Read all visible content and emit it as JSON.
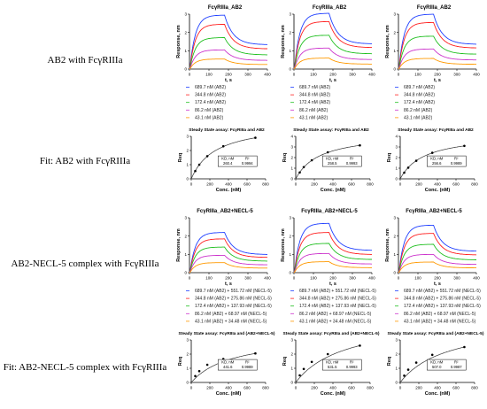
{
  "row_labels": [
    "AB2 with FcγRIIIa",
    "Fit: AB2 with FcγRIIIa",
    "AB2-NECL-5 complex with FcγRIIIa",
    "Fit: AB2-NECL-5 complex with FcγRIIIa"
  ],
  "colors": {
    "series": [
      "#1f3fff",
      "#ff1f1f",
      "#1fbf1f",
      "#cc33cc",
      "#ff9900"
    ],
    "fit_curve": "#333333",
    "axis": "#000000",
    "legend_text": "#222222"
  },
  "chart_data": [
    {
      "type": "line",
      "panel": "sensorgram",
      "row": 0,
      "col": 0,
      "title": "FcγRIIIa_AB2",
      "xlabel": "t, s",
      "ylabel": "Response, nm",
      "xlim": [
        0,
        400
      ],
      "ylim": [
        0,
        3
      ],
      "xticks": [
        "0",
        "100",
        "200",
        "300",
        "400"
      ],
      "yticks": [
        "0",
        "1",
        "2",
        "3"
      ],
      "association_end": 180,
      "series": [
        {
          "name": "689.7 nM (AB2)",
          "plateau": 2.95
        },
        {
          "name": "344.8 nM (AB2)",
          "plateau": 2.45
        },
        {
          "name": "172.4 nM (AB2)",
          "plateau": 1.72
        },
        {
          "name": "86.2 nM (AB2)",
          "plateau": 1.05
        },
        {
          "name": "43.1 nM (AB2)",
          "plateau": 0.55
        }
      ]
    },
    {
      "type": "line",
      "panel": "sensorgram",
      "row": 0,
      "col": 1,
      "title": "FcγRIIIa_AB2",
      "xlabel": "t, s",
      "ylabel": "Response, nm",
      "xlim": [
        0,
        400
      ],
      "ylim": [
        0,
        3
      ],
      "xticks": [
        "0",
        "100",
        "200",
        "300",
        "400"
      ],
      "yticks": [
        "0",
        "1",
        "2",
        "3"
      ],
      "association_end": 180,
      "series": [
        {
          "name": "689.7 nM (AB2)",
          "plateau": 3.05
        },
        {
          "name": "344.8 nM (AB2)",
          "plateau": 2.6
        },
        {
          "name": "172.4 nM (AB2)",
          "plateau": 1.85
        },
        {
          "name": "86.2 nM (AB2)",
          "plateau": 1.15
        },
        {
          "name": "43.1 nM (AB2)",
          "plateau": 0.6
        }
      ]
    },
    {
      "type": "line",
      "panel": "sensorgram",
      "row": 0,
      "col": 2,
      "title": "FcγRIIIa_AB2",
      "xlabel": "t, s",
      "ylabel": "Response, nm",
      "xlim": [
        0,
        400
      ],
      "ylim": [
        0,
        3
      ],
      "xticks": [
        "0",
        "100",
        "200",
        "300",
        "400"
      ],
      "yticks": [
        "0",
        "1",
        "2",
        "3"
      ],
      "association_end": 180,
      "series": [
        {
          "name": "689.7 nM (AB2)",
          "plateau": 3.0
        },
        {
          "name": "344.8 nM (AB2)",
          "plateau": 2.55
        },
        {
          "name": "172.4 nM (AB2)",
          "plateau": 1.8
        },
        {
          "name": "86.2 nM (AB2)",
          "plateau": 1.1
        },
        {
          "name": "43.1 nM (AB2)",
          "plateau": 0.58
        }
      ]
    },
    {
      "type": "scatter",
      "panel": "steady_state",
      "row": 1,
      "col": 0,
      "title": "Steady State assay: FcγRIIIa and AB2",
      "xlabel": "Conc. (nM)",
      "ylabel": "Req",
      "xlim": [
        0,
        800
      ],
      "ylim": [
        0,
        3
      ],
      "xticks": [
        "0",
        "200",
        "400",
        "600",
        "800"
      ],
      "yticks": [
        "0",
        "1",
        "2",
        "3"
      ],
      "x": [
        43.1,
        86.2,
        172.4,
        344.8,
        689.7
      ],
      "y": [
        0.55,
        1.0,
        1.6,
        2.3,
        2.9
      ],
      "kd_label": "KD, nM",
      "r2_label": "R²",
      "kd": "260.4",
      "r2": "0.9994"
    },
    {
      "type": "scatter",
      "panel": "steady_state",
      "row": 1,
      "col": 1,
      "title": "Steady State assay: FcγRIIIa and AB2",
      "xlabel": "Conc. (nM)",
      "ylabel": "Req",
      "xlim": [
        0,
        800
      ],
      "ylim": [
        0,
        4
      ],
      "xticks": [
        "0",
        "200",
        "400",
        "600",
        "800"
      ],
      "yticks": [
        "0",
        "1",
        "2",
        "3",
        "4"
      ],
      "x": [
        43.1,
        86.2,
        172.4,
        344.8,
        689.7
      ],
      "y": [
        0.6,
        1.1,
        1.75,
        2.5,
        3.15
      ],
      "kd_label": "KD, nM",
      "r2_label": "R²",
      "kd": "258.5",
      "r2": "0.9993"
    },
    {
      "type": "scatter",
      "panel": "steady_state",
      "row": 1,
      "col": 2,
      "title": "Steady State assay: FcγRIIIa and AB2",
      "xlabel": "Conc. (nM)",
      "ylabel": "Req",
      "xlim": [
        0,
        800
      ],
      "ylim": [
        0,
        4
      ],
      "xticks": [
        "0",
        "200",
        "400",
        "600",
        "800"
      ],
      "yticks": [
        "0",
        "1",
        "2",
        "3",
        "4"
      ],
      "x": [
        43.1,
        86.2,
        172.4,
        344.8,
        689.7
      ],
      "y": [
        0.58,
        1.05,
        1.7,
        2.45,
        3.1
      ],
      "kd_label": "KD, nM",
      "r2_label": "R²",
      "kd": "256.6",
      "r2": "0.9989"
    },
    {
      "type": "line",
      "panel": "sensorgram",
      "row": 2,
      "col": 0,
      "title": "FcγRIIIa_AB2+NECL-5",
      "xlabel": "t, s",
      "ylabel": "Response, nm",
      "xlim": [
        0,
        400
      ],
      "ylim": [
        0,
        3
      ],
      "xticks": [
        "0",
        "100",
        "200",
        "300",
        "400"
      ],
      "yticks": [
        "0",
        "1",
        "2",
        "3"
      ],
      "association_end": 180,
      "series": [
        {
          "name": "689.7 nM (AB2) + 551.72 nM (NECL-5)",
          "plateau": 2.2
        },
        {
          "name": "344.8 nM (AB2) + 275.86 nM (NECL-5)",
          "plateau": 1.85
        },
        {
          "name": "172.4 nM (AB2) + 137.93 nM (NECL-5)",
          "plateau": 1.4
        },
        {
          "name": "86.2 nM (AB2) + 68.97 nM (NECL-5)",
          "plateau": 0.95
        },
        {
          "name": "43.1 nM (AB2) + 34.48 nM (NECL-5)",
          "plateau": 0.55
        }
      ]
    },
    {
      "type": "line",
      "panel": "sensorgram",
      "row": 2,
      "col": 1,
      "title": "FcγRIIIa_AB2+NECL-5",
      "xlabel": "t, s",
      "ylabel": "Response, nm",
      "xlim": [
        0,
        400
      ],
      "ylim": [
        0,
        3
      ],
      "xticks": [
        "0",
        "100",
        "200",
        "300",
        "400"
      ],
      "yticks": [
        "0",
        "1",
        "2",
        "3"
      ],
      "association_end": 180,
      "series": [
        {
          "name": "689.7 nM (AB2) + 551.72 nM (NECL-5)",
          "plateau": 2.7
        },
        {
          "name": "344.8 nM (AB2) + 275.86 nM (NECL-5)",
          "plateau": 2.2
        },
        {
          "name": "172.4 nM (AB2) + 137.93 nM (NECL-5)",
          "plateau": 1.6
        },
        {
          "name": "86.2 nM (AB2) + 68.97 nM (NECL-5)",
          "plateau": 1.05
        },
        {
          "name": "43.1 nM (AB2) + 34.48 nM (NECL-5)",
          "plateau": 0.6
        }
      ]
    },
    {
      "type": "line",
      "panel": "sensorgram",
      "row": 2,
      "col": 2,
      "title": "FcγRIIIa_AB2+NECL-5",
      "xlabel": "t, s",
      "ylabel": "Response, nm",
      "xlim": [
        0,
        400
      ],
      "ylim": [
        0,
        3
      ],
      "xticks": [
        "0",
        "100",
        "200",
        "300",
        "400"
      ],
      "yticks": [
        "0",
        "1",
        "2",
        "3"
      ],
      "association_end": 180,
      "series": [
        {
          "name": "689.7 nM (AB2) + 551.72 nM (NECL-5)",
          "plateau": 2.6
        },
        {
          "name": "344.8 nM (AB2) + 275.86 nM (NECL-5)",
          "plateau": 2.15
        },
        {
          "name": "172.4 nM (AB2) + 137.93 nM (NECL-5)",
          "plateau": 1.55
        },
        {
          "name": "86.2 nM (AB2) + 68.97 nM (NECL-5)",
          "plateau": 1.0
        },
        {
          "name": "43.1 nM (AB2) + 34.48 nM (NECL-5)",
          "plateau": 0.58
        }
      ]
    },
    {
      "type": "scatter",
      "panel": "steady_state",
      "row": 3,
      "col": 0,
      "title": "Steady State assay: FcγRIIIa and (AB2+NECL-5)",
      "xlabel": "Conc. (nM)",
      "ylabel": "Req",
      "xlim": [
        0,
        800
      ],
      "ylim": [
        0,
        3
      ],
      "xticks": [
        "0",
        "200",
        "400",
        "600",
        "800"
      ],
      "yticks": [
        "0",
        "1",
        "2",
        "3"
      ],
      "x": [
        43.1,
        86.2,
        172.4,
        344.8,
        689.7
      ],
      "y": [
        0.45,
        0.8,
        1.25,
        1.65,
        2.05
      ],
      "kd_label": "KD, nM",
      "r2_label": "R²",
      "kd": "441.6",
      "r2": "0.9989"
    },
    {
      "type": "scatter",
      "panel": "steady_state",
      "row": 3,
      "col": 1,
      "title": "Steady State assay: FcγRIIIa and (AB2+NECL-5)",
      "xlabel": "Conc. (nM)",
      "ylabel": "Req",
      "xlim": [
        0,
        800
      ],
      "ylim": [
        0,
        3
      ],
      "xticks": [
        "0",
        "200",
        "400",
        "600",
        "800"
      ],
      "yticks": [
        "0",
        "1",
        "2",
        "3"
      ],
      "x": [
        43.1,
        86.2,
        172.4,
        344.8,
        689.7
      ],
      "y": [
        0.5,
        0.95,
        1.45,
        2.0,
        2.6
      ],
      "kd_label": "KD, nM",
      "r2_label": "R²",
      "kd": "531.5",
      "r2": "0.9993"
    },
    {
      "type": "scatter",
      "panel": "steady_state",
      "row": 3,
      "col": 2,
      "title": "Steady State assay: FcγRIIIa and (AB2+NECL-5)",
      "xlabel": "Conc. (nM)",
      "ylabel": "Req",
      "xlim": [
        0,
        800
      ],
      "ylim": [
        0,
        3
      ],
      "xticks": [
        "0",
        "200",
        "400",
        "600",
        "800"
      ],
      "yticks": [
        "0",
        "1",
        "2",
        "3"
      ],
      "x": [
        43.1,
        86.2,
        172.4,
        344.8,
        689.7
      ],
      "y": [
        0.48,
        0.9,
        1.4,
        1.95,
        2.5
      ],
      "kd_label": "KD, nM",
      "r2_label": "R²",
      "kd": "507.0",
      "r2": "0.9987"
    }
  ]
}
